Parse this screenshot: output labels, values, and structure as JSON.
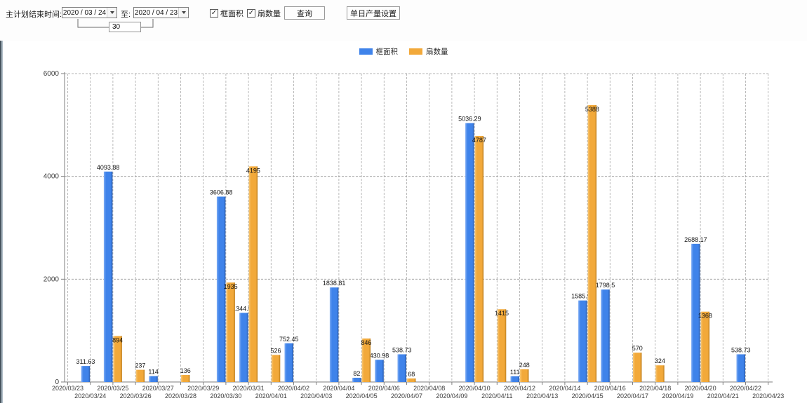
{
  "toolbar": {
    "plan_end_label": "主计划结束时间:",
    "date_from": "2020 / 03 / 24",
    "to_label": "至:",
    "date_to": "2020 / 04 / 23",
    "interval_days": "30",
    "checkbox_frame_area": {
      "label": "框面积",
      "checked": true
    },
    "checkbox_fan_count": {
      "label": "扇数量",
      "checked": true
    },
    "query_button": "查询",
    "daily_output_button": "单日产量设置"
  },
  "legend": {
    "frame_area_label": "框面积",
    "fan_count_label": "扇数量"
  },
  "icons": {
    "checkbox_check": "✓"
  },
  "colors": {
    "frame_area": "#3f83ea",
    "frame_area_light": "#7fadf4",
    "frame_area_dark": "#2a5cae",
    "fan_count": "#f2a93a",
    "fan_count_light": "#f8c876",
    "fan_count_dark": "#bd7e1e",
    "grid": "#9a9a9a",
    "axis": "#7f7f7f",
    "tick_label": "#3c3c3c",
    "value_label": "#141414"
  },
  "chart_data": {
    "type": "bar",
    "title": "",
    "xlabel": "",
    "ylabel": "",
    "ylim": [
      0,
      6000
    ],
    "yticks": [
      0,
      2000,
      4000,
      6000
    ],
    "grid": true,
    "legend_position": "top",
    "categories": [
      "2020/03/23",
      "2020/03/24",
      "2020/03/25",
      "2020/03/26",
      "2020/03/27",
      "2020/03/28",
      "2020/03/29",
      "2020/03/30",
      "2020/03/31",
      "2020/04/01",
      "2020/04/02",
      "2020/04/03",
      "2020/04/04",
      "2020/04/05",
      "2020/04/06",
      "2020/04/07",
      "2020/04/08",
      "2020/04/09",
      "2020/04/10",
      "2020/04/11",
      "2020/04/12",
      "2020/04/13",
      "2020/04/14",
      "2020/04/15",
      "2020/04/16",
      "2020/04/17",
      "2020/04/18",
      "2020/04/19",
      "2020/04/20",
      "2020/04/21",
      "2020/04/22",
      "2020/04/23"
    ],
    "series": [
      {
        "name": "框面积",
        "values": [
          null,
          311.63,
          4093.88,
          null,
          114,
          null,
          null,
          3606.88,
          1344.95,
          null,
          752.45,
          null,
          1838.81,
          82,
          430.98,
          538.73,
          null,
          null,
          5036.29,
          null,
          111,
          null,
          null,
          1585.96,
          1798.5,
          null,
          null,
          null,
          2688.17,
          null,
          538.73,
          null
        ]
      },
      {
        "name": "扇数量",
        "values": [
          null,
          null,
          894,
          237,
          null,
          136,
          null,
          1935,
          4195,
          526,
          null,
          null,
          null,
          846,
          null,
          68,
          null,
          null,
          4787,
          1415,
          248,
          null,
          null,
          5388,
          null,
          570,
          324,
          null,
          1368,
          null,
          null,
          null
        ]
      }
    ]
  }
}
